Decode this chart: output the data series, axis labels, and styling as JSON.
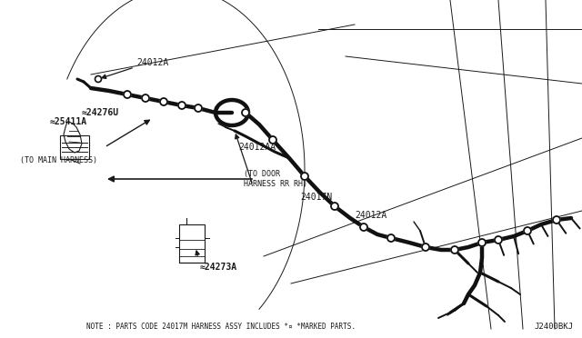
{
  "background_color": "#ffffff",
  "image_code": "J2400BKJ",
  "note_text": "NOTE : PARTS CODE 24017M HARNESS ASSY INCLUDES *¤ *MARKED PARTS.",
  "labels": {
    "part_24276U": "≈24276U",
    "part_24273A": "≈24273A",
    "part_25411A": "≈25411A",
    "label_24017N": "24017N",
    "label_24012A_mid": "24012A",
    "label_24012AA": "24012AA",
    "label_24012A_bot": "24012A",
    "label_door": "(TO DOOR\nHARNESS RR RH)",
    "label_main": "(TO MAIN HARNESS)"
  },
  "line_color": "#1a1a1a",
  "harness_color": "#111111",
  "text_color": "#1a1a1a",
  "fig_width": 6.4,
  "fig_height": 3.72,
  "dpi": 100
}
